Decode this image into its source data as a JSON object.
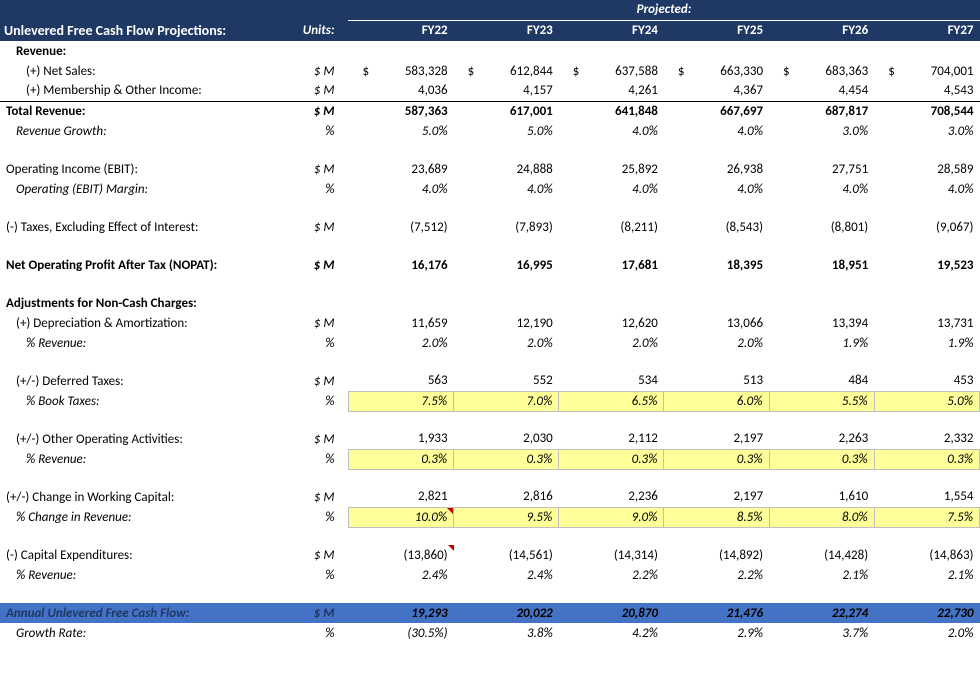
{
  "header": {
    "title": "Unlevered Free Cash Flow Projections:",
    "units_label": "Units:",
    "projected_label": "Projected:",
    "years": [
      "FY22",
      "FY23",
      "FY24",
      "FY25",
      "FY26",
      "FY27"
    ]
  },
  "rows": {
    "revenue_header": "Revenue:",
    "net_sales": {
      "label": "(+) Net Sales:",
      "units": "$ M",
      "values": [
        "583,328",
        "612,844",
        "637,588",
        "663,330",
        "683,363",
        "704,001"
      ],
      "dollar_prefix": true
    },
    "membership": {
      "label": "(+) Membership & Other Income:",
      "units": "$ M",
      "values": [
        "4,036",
        "4,157",
        "4,261",
        "4,367",
        "4,454",
        "4,543"
      ]
    },
    "total_revenue": {
      "label": "Total Revenue:",
      "units": "$ M",
      "values": [
        "587,363",
        "617,001",
        "641,848",
        "667,697",
        "687,817",
        "708,544"
      ]
    },
    "rev_growth": {
      "label": "Revenue Growth:",
      "units": "%",
      "values": [
        "5.0%",
        "5.0%",
        "4.0%",
        "4.0%",
        "3.0%",
        "3.0%"
      ]
    },
    "ebit": {
      "label": "Operating Income (EBIT):",
      "units": "$ M",
      "values": [
        "23,689",
        "24,888",
        "25,892",
        "26,938",
        "27,751",
        "28,589"
      ]
    },
    "ebit_margin": {
      "label": "Operating (EBIT) Margin:",
      "units": "%",
      "values": [
        "4.0%",
        "4.0%",
        "4.0%",
        "4.0%",
        "4.0%",
        "4.0%"
      ]
    },
    "taxes": {
      "label": "(-) Taxes, Excluding Effect of Interest:",
      "units": "$ M",
      "values": [
        "(7,512)",
        "(7,893)",
        "(8,211)",
        "(8,543)",
        "(8,801)",
        "(9,067)"
      ]
    },
    "nopat": {
      "label": "Net Operating Profit After Tax (NOPAT):",
      "units": "$ M",
      "values": [
        "16,176",
        "16,995",
        "17,681",
        "18,395",
        "18,951",
        "19,523"
      ]
    },
    "adj_header": "Adjustments for Non-Cash Charges:",
    "depr": {
      "label": "(+) Depreciation & Amortization:",
      "units": "$ M",
      "values": [
        "11,659",
        "12,190",
        "12,620",
        "13,066",
        "13,394",
        "13,731"
      ]
    },
    "depr_pct": {
      "label": "% Revenue:",
      "units": "%",
      "values": [
        "2.0%",
        "2.0%",
        "2.0%",
        "2.0%",
        "1.9%",
        "1.9%"
      ]
    },
    "def_tax": {
      "label": "(+/-) Deferred Taxes:",
      "units": "$ M",
      "values": [
        "563",
        "552",
        "534",
        "513",
        "484",
        "453"
      ]
    },
    "def_tax_pct": {
      "label": "% Book Taxes:",
      "units": "%",
      "values": [
        "7.5%",
        "7.0%",
        "6.5%",
        "6.0%",
        "5.5%",
        "5.0%"
      ]
    },
    "other_op": {
      "label": "(+/-) Other Operating Activities:",
      "units": "$ M",
      "values": [
        "1,933",
        "2,030",
        "2,112",
        "2,197",
        "2,263",
        "2,332"
      ]
    },
    "other_op_pct": {
      "label": "% Revenue:",
      "units": "%",
      "values": [
        "0.3%",
        "0.3%",
        "0.3%",
        "0.3%",
        "0.3%",
        "0.3%"
      ]
    },
    "wc": {
      "label": "(+/-) Change in Working Capital:",
      "units": "$ M",
      "values": [
        "2,821",
        "2,816",
        "2,236",
        "2,197",
        "1,610",
        "1,554"
      ]
    },
    "wc_pct": {
      "label": "% Change in Revenue:",
      "units": "%",
      "values": [
        "10.0%",
        "9.5%",
        "9.0%",
        "8.5%",
        "8.0%",
        "7.5%"
      ]
    },
    "capex": {
      "label": "(-) Capital Expenditures:",
      "units": "$ M",
      "values": [
        "(13,860)",
        "(14,561)",
        "(14,314)",
        "(14,892)",
        "(14,428)",
        "(14,863)"
      ]
    },
    "capex_pct": {
      "label": "% Revenue:",
      "units": "%",
      "values": [
        "2.4%",
        "2.4%",
        "2.2%",
        "2.2%",
        "2.1%",
        "2.1%"
      ]
    },
    "ufcf": {
      "label": "Annual Unlevered Free Cash Flow:",
      "units": "$ M",
      "values": [
        "19,293",
        "20,022",
        "20,870",
        "21,476",
        "22,274",
        "22,730"
      ]
    },
    "growth": {
      "label": "Growth Rate:",
      "units": "%",
      "values": [
        "(30.5%)",
        "3.8%",
        "4.2%",
        "2.9%",
        "3.7%",
        "2.0%"
      ]
    }
  },
  "colors": {
    "header_bg": "#1f3864",
    "highlight_input": "#ffff99",
    "highlight_row": "#4472c4",
    "comment_triangle": "#c00000"
  }
}
